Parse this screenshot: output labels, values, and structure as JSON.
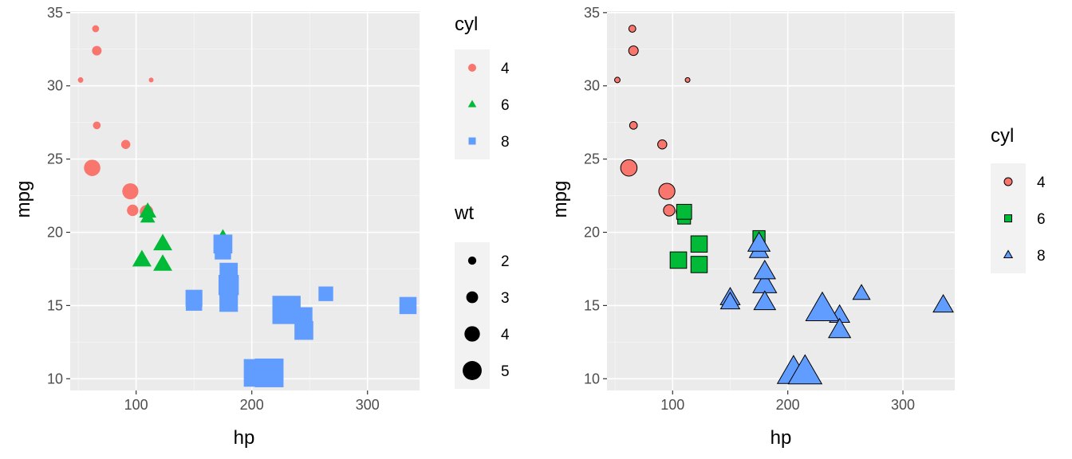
{
  "chart_data": [
    {
      "type": "scatter",
      "xlabel": "hp",
      "ylabel": "mpg",
      "xlim": [
        43,
        345
      ],
      "ylim": [
        9.2,
        35.1
      ],
      "xticks": [
        "100",
        "200",
        "300"
      ],
      "yticks": [
        "10",
        "15",
        "20",
        "25",
        "30",
        "35"
      ],
      "grid": true,
      "legends": [
        {
          "title": "cyl",
          "items": [
            {
              "label": "4",
              "shape": "circle",
              "color": "#F8766D"
            },
            {
              "label": "6",
              "shape": "triangle",
              "color": "#00BA38"
            },
            {
              "label": "8",
              "shape": "square",
              "color": "#619CFF"
            }
          ]
        },
        {
          "title": "wt",
          "items": [
            {
              "label": "2",
              "size": 2
            },
            {
              "label": "3",
              "size": 3
            },
            {
              "label": "4",
              "size": 4
            },
            {
              "label": "5",
              "size": 5
            }
          ]
        }
      ],
      "legend_position": "right",
      "series": [
        {
          "name": "4",
          "shape": "circle",
          "color": "#F8766D",
          "points": [
            {
              "x": 93,
              "y": 22.8,
              "wt": 2.32
            },
            {
              "x": 62,
              "y": 24.4,
              "wt": 3.19
            },
            {
              "x": 95,
              "y": 22.8,
              "wt": 3.15
            },
            {
              "x": 66,
              "y": 32.4,
              "wt": 2.2
            },
            {
              "x": 52,
              "y": 30.4,
              "wt": 1.615
            },
            {
              "x": 65,
              "y": 33.9,
              "wt": 1.835
            },
            {
              "x": 97,
              "y": 21.5,
              "wt": 2.465
            },
            {
              "x": 66,
              "y": 27.3,
              "wt": 1.935
            },
            {
              "x": 91,
              "y": 26.0,
              "wt": 2.14
            },
            {
              "x": 113,
              "y": 30.4,
              "wt": 1.513
            },
            {
              "x": 109,
              "y": 21.4,
              "wt": 2.78
            }
          ]
        },
        {
          "name": "6",
          "shape": "triangle",
          "color": "#00BA38",
          "points": [
            {
              "x": 110,
              "y": 21.0,
              "wt": 2.62
            },
            {
              "x": 110,
              "y": 21.0,
              "wt": 2.875
            },
            {
              "x": 110,
              "y": 21.4,
              "wt": 3.215
            },
            {
              "x": 105,
              "y": 18.1,
              "wt": 3.46
            },
            {
              "x": 123,
              "y": 19.2,
              "wt": 3.44
            },
            {
              "x": 123,
              "y": 17.8,
              "wt": 3.44
            },
            {
              "x": 175,
              "y": 19.7,
              "wt": 2.77
            }
          ]
        },
        {
          "name": "8",
          "shape": "square",
          "color": "#619CFF",
          "points": [
            {
              "x": 175,
              "y": 18.7,
              "wt": 3.44
            },
            {
              "x": 245,
              "y": 14.3,
              "wt": 3.57
            },
            {
              "x": 180,
              "y": 16.4,
              "wt": 4.07
            },
            {
              "x": 180,
              "y": 17.3,
              "wt": 3.73
            },
            {
              "x": 180,
              "y": 15.2,
              "wt": 3.78
            },
            {
              "x": 205,
              "y": 10.4,
              "wt": 5.25
            },
            {
              "x": 215,
              "y": 10.4,
              "wt": 5.424
            },
            {
              "x": 230,
              "y": 14.7,
              "wt": 5.345
            },
            {
              "x": 150,
              "y": 15.5,
              "wt": 3.52
            },
            {
              "x": 150,
              "y": 15.2,
              "wt": 3.435
            },
            {
              "x": 245,
              "y": 13.3,
              "wt": 3.84
            },
            {
              "x": 175,
              "y": 19.2,
              "wt": 3.845
            },
            {
              "x": 264,
              "y": 15.8,
              "wt": 3.17
            },
            {
              "x": 335,
              "y": 15.0,
              "wt": 3.57
            }
          ]
        }
      ]
    },
    {
      "type": "scatter",
      "xlabel": "hp",
      "ylabel": "mpg",
      "xlim": [
        43,
        345
      ],
      "ylim": [
        9.2,
        35.1
      ],
      "xticks": [
        "100",
        "200",
        "300"
      ],
      "yticks": [
        "10",
        "15",
        "20",
        "25",
        "30",
        "35"
      ],
      "grid": true,
      "legends": [
        {
          "title": "cyl",
          "items": [
            {
              "label": "4",
              "shape": "circle",
              "color": "#F8766D"
            },
            {
              "label": "6",
              "shape": "square",
              "color": "#00BA38"
            },
            {
              "label": "8",
              "shape": "triangle",
              "color": "#619CFF"
            }
          ]
        }
      ],
      "legend_position": "right",
      "series": [
        {
          "name": "4",
          "shape": "circle",
          "color": "#F8766D",
          "points": [
            {
              "x": 93,
              "y": 22.8,
              "wt": 2.32
            },
            {
              "x": 62,
              "y": 24.4,
              "wt": 3.19
            },
            {
              "x": 95,
              "y": 22.8,
              "wt": 3.15
            },
            {
              "x": 66,
              "y": 32.4,
              "wt": 2.2
            },
            {
              "x": 52,
              "y": 30.4,
              "wt": 1.615
            },
            {
              "x": 65,
              "y": 33.9,
              "wt": 1.835
            },
            {
              "x": 97,
              "y": 21.5,
              "wt": 2.465
            },
            {
              "x": 66,
              "y": 27.3,
              "wt": 1.935
            },
            {
              "x": 91,
              "y": 26.0,
              "wt": 2.14
            },
            {
              "x": 113,
              "y": 30.4,
              "wt": 1.513
            },
            {
              "x": 109,
              "y": 21.4,
              "wt": 2.78
            }
          ]
        },
        {
          "name": "6",
          "shape": "square",
          "color": "#00BA38",
          "points": [
            {
              "x": 110,
              "y": 21.0,
              "wt": 2.62
            },
            {
              "x": 110,
              "y": 21.0,
              "wt": 2.875
            },
            {
              "x": 110,
              "y": 21.4,
              "wt": 3.215
            },
            {
              "x": 105,
              "y": 18.1,
              "wt": 3.46
            },
            {
              "x": 123,
              "y": 19.2,
              "wt": 3.44
            },
            {
              "x": 123,
              "y": 17.8,
              "wt": 3.44
            },
            {
              "x": 175,
              "y": 19.7,
              "wt": 2.77
            }
          ]
        },
        {
          "name": "8",
          "shape": "triangle",
          "color": "#619CFF",
          "points": [
            {
              "x": 175,
              "y": 18.7,
              "wt": 3.44
            },
            {
              "x": 245,
              "y": 14.3,
              "wt": 3.57
            },
            {
              "x": 180,
              "y": 16.4,
              "wt": 4.07
            },
            {
              "x": 180,
              "y": 17.3,
              "wt": 3.73
            },
            {
              "x": 180,
              "y": 15.2,
              "wt": 3.78
            },
            {
              "x": 205,
              "y": 10.4,
              "wt": 5.25
            },
            {
              "x": 215,
              "y": 10.4,
              "wt": 5.424
            },
            {
              "x": 230,
              "y": 14.7,
              "wt": 5.345
            },
            {
              "x": 150,
              "y": 15.5,
              "wt": 3.52
            },
            {
              "x": 150,
              "y": 15.2,
              "wt": 3.435
            },
            {
              "x": 245,
              "y": 13.3,
              "wt": 3.84
            },
            {
              "x": 175,
              "y": 19.2,
              "wt": 3.845
            },
            {
              "x": 264,
              "y": 15.8,
              "wt": 3.17
            },
            {
              "x": 335,
              "y": 15.0,
              "wt": 3.57
            }
          ]
        }
      ]
    }
  ]
}
